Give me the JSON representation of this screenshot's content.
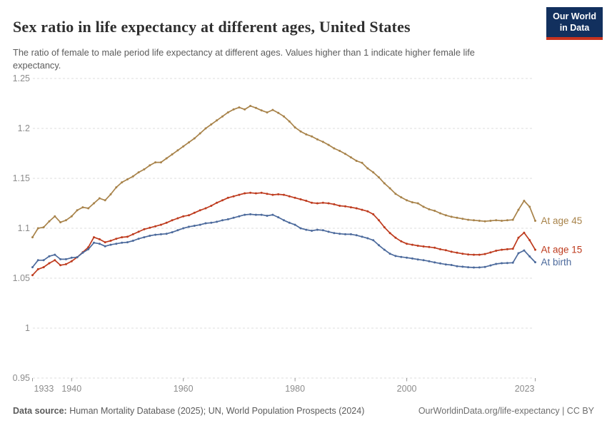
{
  "header": {
    "title": "Sex ratio in life expectancy at different ages, United States",
    "subtitle": "The ratio of female to male period life expectancy at different ages. Values higher than 1 indicate higher female life expectancy.",
    "logo": {
      "line1": "Our World",
      "line2": "in Data",
      "bg": "#12305E",
      "accent": "#C7331F"
    }
  },
  "footer": {
    "source_label": "Data source:",
    "source_text": " Human Mortality Database (2025); UN, World Population Prospects (2024)",
    "link_text": "OurWorldinData.org/life-expectancy | CC BY"
  },
  "chart_data": {
    "type": "line",
    "title": "Sex ratio in life expectancy at different ages, United States",
    "xlabel": "",
    "ylabel": "",
    "ylim": [
      0.95,
      1.25
    ],
    "yticks": [
      0.95,
      1,
      1.05,
      1.1,
      1.15,
      1.2,
      1.25
    ],
    "xticks": [
      1933,
      1940,
      1960,
      1980,
      2000,
      2023
    ],
    "grid": "dashed-horizontal",
    "legend_position": "right-end-labels",
    "marker": "dot",
    "axis_text_color": "#8c8c8c",
    "grid_color": "#dcdcdc",
    "x": [
      1933,
      1934,
      1935,
      1936,
      1937,
      1938,
      1939,
      1940,
      1941,
      1942,
      1943,
      1944,
      1945,
      1946,
      1947,
      1948,
      1949,
      1950,
      1951,
      1952,
      1953,
      1954,
      1955,
      1956,
      1957,
      1958,
      1959,
      1960,
      1961,
      1962,
      1963,
      1964,
      1965,
      1966,
      1967,
      1968,
      1969,
      1970,
      1971,
      1972,
      1973,
      1974,
      1975,
      1976,
      1977,
      1978,
      1979,
      1980,
      1981,
      1982,
      1983,
      1984,
      1985,
      1986,
      1987,
      1988,
      1989,
      1990,
      1991,
      1992,
      1993,
      1994,
      1995,
      1996,
      1997,
      1998,
      1999,
      2000,
      2001,
      2002,
      2003,
      2004,
      2005,
      2006,
      2007,
      2008,
      2009,
      2010,
      2011,
      2012,
      2013,
      2014,
      2015,
      2016,
      2017,
      2018,
      2019,
      2020,
      2021,
      2022,
      2023
    ],
    "series": [
      {
        "name": "At age 45",
        "color": "#A8834A",
        "values": [
          1.091,
          1.1,
          1.101,
          1.107,
          1.112,
          1.106,
          1.108,
          1.112,
          1.118,
          1.121,
          1.12,
          1.125,
          1.13,
          1.128,
          1.134,
          1.141,
          1.146,
          1.149,
          1.152,
          1.156,
          1.159,
          1.163,
          1.166,
          1.166,
          1.17,
          1.174,
          1.178,
          1.182,
          1.186,
          1.19,
          1.195,
          1.2,
          1.204,
          1.208,
          1.212,
          1.216,
          1.219,
          1.221,
          1.219,
          1.2225,
          1.2205,
          1.218,
          1.216,
          1.2185,
          1.2155,
          1.212,
          1.207,
          1.201,
          1.197,
          1.194,
          1.192,
          1.189,
          1.1865,
          1.1835,
          1.18,
          1.1775,
          1.1745,
          1.171,
          1.1675,
          1.1655,
          1.16,
          1.156,
          1.151,
          1.145,
          1.14,
          1.1345,
          1.131,
          1.128,
          1.126,
          1.125,
          1.1215,
          1.119,
          1.1175,
          1.115,
          1.113,
          1.1115,
          1.1105,
          1.1095,
          1.1085,
          1.108,
          1.1075,
          1.107,
          1.1075,
          1.108,
          1.1075,
          1.108,
          1.1085,
          1.1185,
          1.1275,
          1.1215,
          1.1075
        ]
      },
      {
        "name": "At age 15",
        "color": "#BE3B1E",
        "values": [
          1.053,
          1.059,
          1.061,
          1.065,
          1.068,
          1.063,
          1.064,
          1.067,
          1.071,
          1.076,
          1.081,
          1.091,
          1.089,
          1.086,
          1.0875,
          1.0895,
          1.091,
          1.0915,
          1.094,
          1.0965,
          1.099,
          1.1005,
          1.102,
          1.1035,
          1.1055,
          1.108,
          1.11,
          1.112,
          1.113,
          1.1155,
          1.118,
          1.12,
          1.1225,
          1.1255,
          1.128,
          1.1305,
          1.132,
          1.1335,
          1.135,
          1.1355,
          1.135,
          1.1355,
          1.1345,
          1.1335,
          1.134,
          1.1335,
          1.132,
          1.1305,
          1.129,
          1.1275,
          1.1255,
          1.125,
          1.1255,
          1.125,
          1.124,
          1.1225,
          1.122,
          1.121,
          1.12,
          1.1185,
          1.117,
          1.114,
          1.108,
          1.101,
          1.0952,
          1.0905,
          1.0869,
          1.0845,
          1.0835,
          1.0825,
          1.0818,
          1.0812,
          1.0805,
          1.079,
          1.078,
          1.0765,
          1.0755,
          1.0745,
          1.0738,
          1.0735,
          1.0735,
          1.0742,
          1.0758,
          1.0775,
          1.0785,
          1.079,
          1.0795,
          1.0905,
          1.0955,
          1.088,
          1.0785
        ]
      },
      {
        "name": "At birth",
        "color": "#4C6A9C",
        "values": [
          1.061,
          1.068,
          1.068,
          1.072,
          1.0735,
          1.069,
          1.069,
          1.0705,
          1.071,
          1.0755,
          1.079,
          1.0855,
          1.0845,
          1.082,
          1.0835,
          1.0845,
          1.0855,
          1.086,
          1.0875,
          1.0895,
          1.091,
          1.0925,
          1.0935,
          1.094,
          1.0945,
          1.096,
          1.098,
          1.1,
          1.1015,
          1.1025,
          1.1035,
          1.105,
          1.1055,
          1.1065,
          1.108,
          1.109,
          1.1105,
          1.112,
          1.1135,
          1.114,
          1.1135,
          1.1135,
          1.1125,
          1.1135,
          1.111,
          1.108,
          1.1055,
          1.1035,
          1.1,
          1.0985,
          1.0975,
          1.0985,
          1.098,
          1.0965,
          1.0952,
          1.0945,
          1.094,
          1.094,
          1.093,
          1.0915,
          1.09,
          1.088,
          1.083,
          1.0785,
          1.0745,
          1.0722,
          1.0713,
          1.0706,
          1.0697,
          1.0688,
          1.068,
          1.067,
          1.0658,
          1.0648,
          1.0638,
          1.0632,
          1.062,
          1.0615,
          1.061,
          1.0607,
          1.0608,
          1.0613,
          1.0628,
          1.0643,
          1.065,
          1.0652,
          1.0655,
          1.075,
          1.0778,
          1.0718,
          1.066
        ]
      }
    ]
  }
}
